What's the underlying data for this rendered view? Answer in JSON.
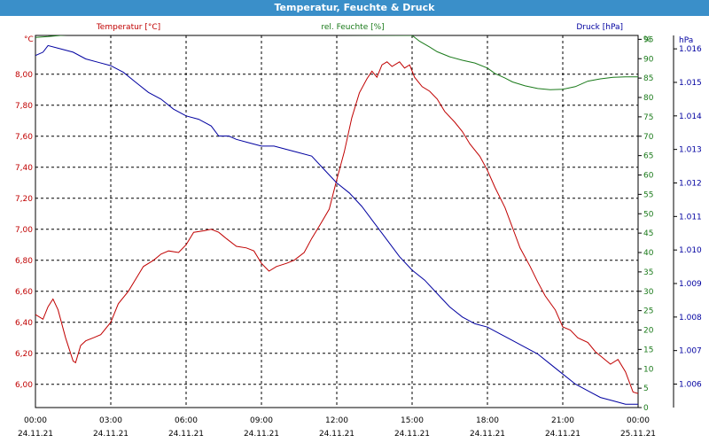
{
  "window": {
    "title": "Temperatur, Feuchte & Druck"
  },
  "chart_data": {
    "type": "line",
    "title": "Temperatur, Feuchte & Druck",
    "x_ticks": [
      {
        "time": "00:00",
        "date": "24.11.21"
      },
      {
        "time": "03:00",
        "date": "24.11.21"
      },
      {
        "time": "06:00",
        "date": "24.11.21"
      },
      {
        "time": "09:00",
        "date": "24.11.21"
      },
      {
        "time": "12:00",
        "date": "24.11.21"
      },
      {
        "time": "15:00",
        "date": "24.11.21"
      },
      {
        "time": "18:00",
        "date": "24.11.21"
      },
      {
        "time": "21:00",
        "date": "24.11.21"
      },
      {
        "time": "00:00",
        "date": "25.11.21"
      }
    ],
    "xlim_hours": [
      0,
      24
    ],
    "grid": true,
    "axes": {
      "temperature": {
        "unit_label": "°C",
        "ylim": [
          5.85,
          8.25
        ],
        "ticks": [
          "6,00",
          "6,20",
          "6,40",
          "6,60",
          "6,80",
          "7,00",
          "7,20",
          "7,40",
          "7,60",
          "7,80",
          "8,00"
        ],
        "tick_values": [
          6.0,
          6.2,
          6.4,
          6.6,
          6.8,
          7.0,
          7.2,
          7.4,
          7.6,
          7.8,
          8.0
        ],
        "color": "#c00000"
      },
      "humidity": {
        "unit_label": "%",
        "ylim": [
          0,
          96
        ],
        "ticks": [
          "0",
          "5",
          "10",
          "15",
          "20",
          "25",
          "30",
          "35",
          "40",
          "45",
          "50",
          "55",
          "60",
          "65",
          "70",
          "75",
          "80",
          "85",
          "90",
          "95"
        ],
        "tick_values": [
          0,
          5,
          10,
          15,
          20,
          25,
          30,
          35,
          40,
          45,
          50,
          55,
          60,
          65,
          70,
          75,
          80,
          85,
          90,
          95
        ],
        "color": "#1a7a1a"
      },
      "pressure": {
        "unit_label": "hPa",
        "ylim": [
          1.0053,
          1.0164
        ],
        "ticks": [
          "1.006",
          "1.007",
          "1.008",
          "1.009",
          "1.010",
          "1.011",
          "1.012",
          "1.013",
          "1.014",
          "1.015",
          "1.016"
        ],
        "tick_values": [
          1.006,
          1.007,
          1.008,
          1.009,
          1.01,
          1.011,
          1.012,
          1.013,
          1.014,
          1.015,
          1.016
        ],
        "color": "#0000a0"
      }
    },
    "series": [
      {
        "name": "Temperatur [°C]",
        "axis": "temperature",
        "color": "#c00000",
        "points": [
          [
            0,
            6.45
          ],
          [
            0.3,
            6.42
          ],
          [
            0.5,
            6.5
          ],
          [
            0.7,
            6.55
          ],
          [
            0.9,
            6.48
          ],
          [
            1.2,
            6.3
          ],
          [
            1.5,
            6.15
          ],
          [
            1.6,
            6.14
          ],
          [
            1.8,
            6.25
          ],
          [
            2.0,
            6.28
          ],
          [
            2.3,
            6.3
          ],
          [
            2.6,
            6.32
          ],
          [
            3.0,
            6.4
          ],
          [
            3.3,
            6.52
          ],
          [
            3.7,
            6.6
          ],
          [
            4.0,
            6.68
          ],
          [
            4.3,
            6.76
          ],
          [
            4.7,
            6.8
          ],
          [
            5.0,
            6.84
          ],
          [
            5.3,
            6.86
          ],
          [
            5.7,
            6.85
          ],
          [
            6.0,
            6.9
          ],
          [
            6.3,
            6.98
          ],
          [
            6.7,
            6.99
          ],
          [
            7.0,
            7.0
          ],
          [
            7.3,
            6.98
          ],
          [
            7.6,
            6.94
          ],
          [
            8.0,
            6.89
          ],
          [
            8.4,
            6.88
          ],
          [
            8.7,
            6.86
          ],
          [
            9.0,
            6.78
          ],
          [
            9.3,
            6.73
          ],
          [
            9.6,
            6.76
          ],
          [
            10.0,
            6.78
          ],
          [
            10.3,
            6.8
          ],
          [
            10.7,
            6.85
          ],
          [
            11.0,
            6.94
          ],
          [
            11.3,
            7.02
          ],
          [
            11.7,
            7.13
          ],
          [
            12.0,
            7.32
          ],
          [
            12.3,
            7.5
          ],
          [
            12.6,
            7.72
          ],
          [
            12.9,
            7.88
          ],
          [
            13.2,
            7.97
          ],
          [
            13.4,
            8.02
          ],
          [
            13.6,
            7.98
          ],
          [
            13.8,
            8.06
          ],
          [
            14.0,
            8.08
          ],
          [
            14.2,
            8.05
          ],
          [
            14.5,
            8.08
          ],
          [
            14.7,
            8.04
          ],
          [
            14.9,
            8.06
          ],
          [
            15.1,
            7.98
          ],
          [
            15.4,
            7.92
          ],
          [
            15.7,
            7.89
          ],
          [
            16.0,
            7.84
          ],
          [
            16.3,
            7.76
          ],
          [
            16.7,
            7.69
          ],
          [
            17.0,
            7.63
          ],
          [
            17.3,
            7.55
          ],
          [
            17.7,
            7.47
          ],
          [
            18.0,
            7.38
          ],
          [
            18.3,
            7.27
          ],
          [
            18.7,
            7.14
          ],
          [
            19.0,
            7.01
          ],
          [
            19.3,
            6.88
          ],
          [
            19.7,
            6.76
          ],
          [
            20.0,
            6.66
          ],
          [
            20.3,
            6.57
          ],
          [
            20.7,
            6.48
          ],
          [
            21.0,
            6.37
          ],
          [
            21.3,
            6.35
          ],
          [
            21.6,
            6.3
          ],
          [
            22.0,
            6.27
          ],
          [
            22.3,
            6.21
          ],
          [
            22.6,
            6.17
          ],
          [
            22.9,
            6.13
          ],
          [
            23.2,
            6.16
          ],
          [
            23.5,
            6.08
          ],
          [
            23.8,
            5.95
          ],
          [
            24.0,
            5.94
          ]
        ]
      },
      {
        "name": "rel. Feuchte [%]",
        "axis": "humidity",
        "color": "#1a7a1a",
        "points": [
          [
            0,
            95.5
          ],
          [
            0.5,
            95.7
          ],
          [
            1.0,
            96.0
          ],
          [
            1.5,
            96.2
          ],
          [
            2.0,
            96.4
          ],
          [
            2.5,
            96.5
          ],
          [
            15.0,
            96.0
          ],
          [
            15.3,
            94.5
          ],
          [
            15.7,
            93.0
          ],
          [
            16.0,
            91.8
          ],
          [
            16.5,
            90.5
          ],
          [
            17.0,
            89.6
          ],
          [
            17.5,
            88.9
          ],
          [
            18.0,
            87.6
          ],
          [
            18.3,
            86.2
          ],
          [
            18.7,
            85.0
          ],
          [
            19.0,
            84.0
          ],
          [
            19.5,
            83.0
          ],
          [
            20.0,
            82.3
          ],
          [
            20.5,
            82.0
          ],
          [
            21.0,
            82.1
          ],
          [
            21.5,
            82.8
          ],
          [
            22.0,
            84.2
          ],
          [
            22.5,
            84.8
          ],
          [
            23.0,
            85.2
          ],
          [
            23.5,
            85.3
          ],
          [
            24.0,
            85.3
          ]
        ]
      },
      {
        "name": "Druck [hPa]",
        "axis": "pressure",
        "color": "#0000a0",
        "points": [
          [
            0,
            1.0158
          ],
          [
            0.3,
            1.0159
          ],
          [
            0.5,
            1.0161
          ],
          [
            1.0,
            1.016
          ],
          [
            1.5,
            1.0159
          ],
          [
            2.0,
            1.0157
          ],
          [
            2.5,
            1.0156
          ],
          [
            3.0,
            1.0155
          ],
          [
            3.5,
            1.0153
          ],
          [
            4.0,
            1.015
          ],
          [
            4.5,
            1.0147
          ],
          [
            5.0,
            1.0145
          ],
          [
            5.5,
            1.0142
          ],
          [
            6.0,
            1.014
          ],
          [
            6.5,
            1.0139
          ],
          [
            7.0,
            1.0137
          ],
          [
            7.3,
            1.0134
          ],
          [
            7.7,
            1.0134
          ],
          [
            8.0,
            1.0133
          ],
          [
            8.5,
            1.0132
          ],
          [
            9.0,
            1.0131
          ],
          [
            9.5,
            1.0131
          ],
          [
            10.0,
            1.013
          ],
          [
            10.5,
            1.0129
          ],
          [
            11.0,
            1.0128
          ],
          [
            11.5,
            1.0124
          ],
          [
            12.0,
            1.012
          ],
          [
            12.5,
            1.0117
          ],
          [
            13.0,
            1.0113
          ],
          [
            13.5,
            1.0108
          ],
          [
            14.0,
            1.0103
          ],
          [
            14.5,
            1.0098
          ],
          [
            15.0,
            1.0094
          ],
          [
            15.5,
            1.0091
          ],
          [
            16.0,
            1.0087
          ],
          [
            16.5,
            1.0083
          ],
          [
            17.0,
            1.008
          ],
          [
            17.5,
            1.0078
          ],
          [
            18.0,
            1.0077
          ],
          [
            18.5,
            1.0075
          ],
          [
            19.0,
            1.0073
          ],
          [
            19.5,
            1.0071
          ],
          [
            20.0,
            1.0069
          ],
          [
            20.5,
            1.0066
          ],
          [
            21.0,
            1.0063
          ],
          [
            21.5,
            1.006
          ],
          [
            22.0,
            1.0058
          ],
          [
            22.5,
            1.0056
          ],
          [
            23.0,
            1.0055
          ],
          [
            23.5,
            1.0054
          ],
          [
            24.0,
            1.0054
          ]
        ]
      }
    ]
  }
}
